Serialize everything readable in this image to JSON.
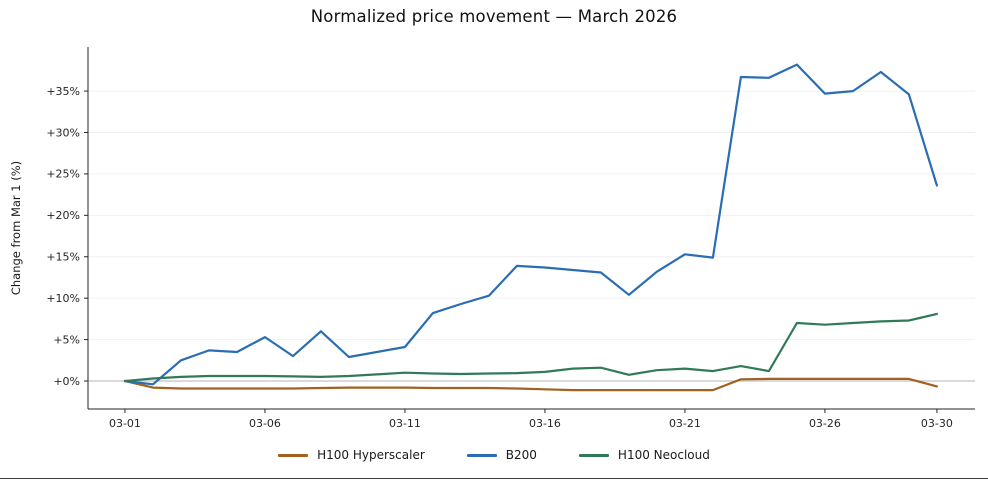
{
  "chart_data": {
    "type": "line",
    "title": "Normalized price movement — March 2026",
    "xlabel": "",
    "ylabel": "Change from Mar 1 (%)",
    "grid": "horizontal-faint",
    "legend_position": "bottom-center",
    "xlim": [
      -0.32,
      31.36
    ],
    "ylim": [
      -3.38,
      40.32
    ],
    "x_tick_days": [
      1,
      6,
      11,
      16,
      21,
      26,
      30
    ],
    "x_tick_labels": [
      "03-01",
      "03-06",
      "03-11",
      "03-16",
      "03-21",
      "03-26",
      "03-30"
    ],
    "y_ticks": [
      0,
      5,
      10,
      15,
      20,
      25,
      30,
      35
    ],
    "y_tick_labels": [
      "+0%",
      "+5%",
      "+10%",
      "+15%",
      "+20%",
      "+25%",
      "+30%",
      "+35%"
    ],
    "x_days": [
      1,
      2,
      3,
      4,
      5,
      6,
      7,
      8,
      9,
      10,
      11,
      12,
      13,
      14,
      15,
      16,
      17,
      18,
      19,
      20,
      21,
      22,
      23,
      24,
      25,
      26,
      27,
      28,
      29,
      30
    ],
    "series": [
      {
        "name": "H100 Hyperscaler",
        "color": "#a3611f",
        "values": [
          0,
          -0.8,
          -0.9,
          -0.9,
          -0.9,
          -0.9,
          -0.9,
          -0.85,
          -0.8,
          -0.8,
          -0.8,
          -0.85,
          -0.85,
          -0.85,
          -0.9,
          -1.0,
          -1.1,
          -1.1,
          -1.1,
          -1.1,
          -1.1,
          -1.1,
          0.2,
          0.25,
          0.25,
          0.25,
          0.25,
          0.25,
          0.25,
          -0.65
        ]
      },
      {
        "name": "B200",
        "color": "#2a6db4",
        "values": [
          0,
          -0.4,
          2.5,
          3.7,
          3.5,
          5.3,
          3.0,
          6.0,
          2.9,
          3.5,
          4.1,
          8.2,
          9.3,
          10.3,
          13.9,
          13.7,
          13.4,
          13.1,
          10.4,
          13.2,
          15.3,
          14.9,
          36.7,
          36.6,
          38.2,
          34.7,
          35.0,
          37.3,
          34.6,
          23.6
        ]
      },
      {
        "name": "H100 Neocloud",
        "color": "#317a58",
        "values": [
          0,
          0.3,
          0.5,
          0.6,
          0.6,
          0.6,
          0.55,
          0.5,
          0.6,
          0.8,
          1.0,
          0.9,
          0.85,
          0.9,
          0.95,
          1.1,
          1.5,
          1.6,
          0.75,
          1.3,
          1.5,
          1.2,
          1.8,
          1.2,
          7.0,
          6.8,
          7.0,
          7.2,
          7.3,
          8.1
        ]
      }
    ]
  }
}
